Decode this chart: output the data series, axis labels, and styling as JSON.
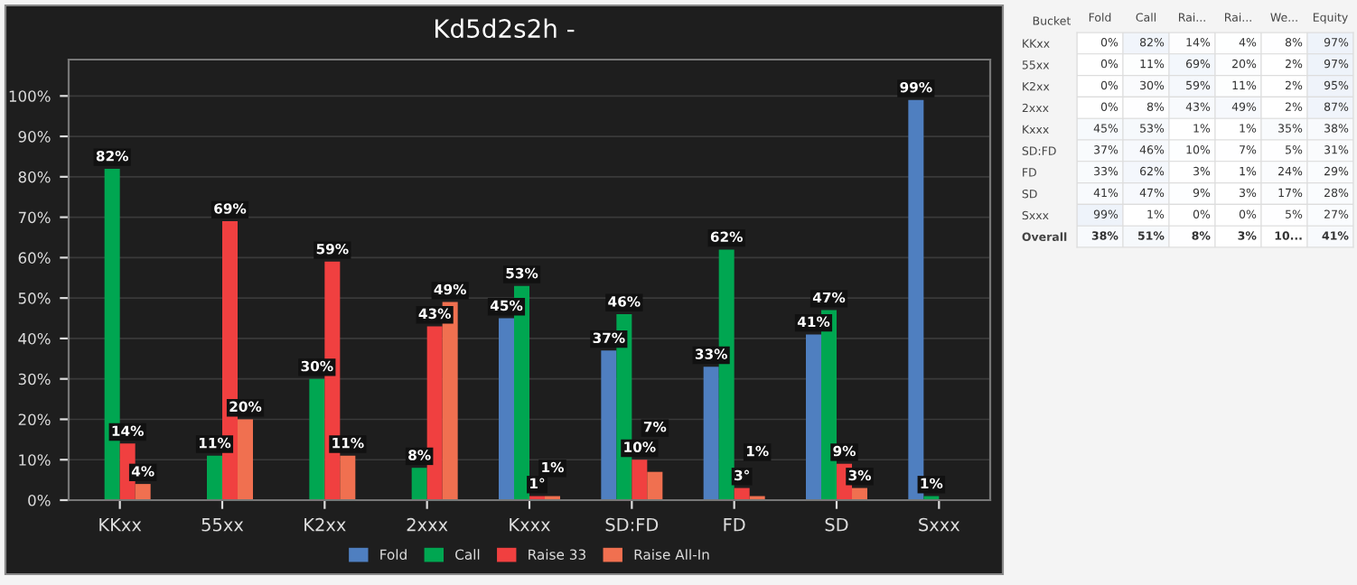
{
  "chart_data": [
    {
      "type": "bar",
      "title": "Kd5d2s2h -",
      "categories": [
        "KKxx",
        "55xx",
        "K2xx",
        "2xxx",
        "Kxxx",
        "SD:FD",
        "FD",
        "SD",
        "Sxxx"
      ],
      "series": [
        {
          "name": "Fold",
          "color": "#4f7fc0",
          "values": [
            0,
            0,
            0,
            0,
            45,
            37,
            33,
            41,
            99
          ],
          "value_labels": [
            null,
            null,
            null,
            null,
            "45%",
            "37%",
            "33%",
            "41%",
            "99%"
          ]
        },
        {
          "name": "Call",
          "color": "#00a651",
          "values": [
            82,
            11,
            30,
            8,
            53,
            46,
            62,
            47,
            1
          ],
          "value_labels": [
            "82%",
            "11%",
            "30%",
            "8%",
            "53%",
            "46%",
            "62%",
            "47%",
            "1%"
          ]
        },
        {
          "name": "Raise 33",
          "color": "#f04040",
          "values": [
            14,
            69,
            59,
            43,
            1,
            10,
            3,
            9,
            0
          ],
          "value_labels": [
            "14%",
            "69%",
            "59%",
            "43%",
            "1°",
            "10%",
            "3°",
            "9%",
            null
          ]
        },
        {
          "name": "Raise All-In",
          "color": "#f07050",
          "values": [
            4,
            20,
            11,
            49,
            1,
            7,
            1,
            3,
            0
          ],
          "value_labels": [
            "4%",
            "20%",
            "11%",
            "49%",
            "1%",
            "7%",
            "1%",
            "3%",
            null
          ]
        }
      ],
      "ylim": [
        0,
        109
      ],
      "yticks": [
        {
          "value": 0,
          "label": "0%"
        },
        {
          "value": 10,
          "label": "10%"
        },
        {
          "value": 20,
          "label": "20%"
        },
        {
          "value": 30,
          "label": "30%"
        },
        {
          "value": 40,
          "label": "40%"
        },
        {
          "value": 50,
          "label": "50%"
        },
        {
          "value": 60,
          "label": "60%"
        },
        {
          "value": 70,
          "label": "70%"
        },
        {
          "value": 80,
          "label": "80%"
        },
        {
          "value": 90,
          "label": "90%"
        },
        {
          "value": 100,
          "label": "100%"
        }
      ],
      "grid": "y",
      "legend": "bottom"
    },
    {
      "type": "heatmap",
      "ylabel": "Bucket",
      "categories": [
        "Fold",
        "Call",
        "Rai...",
        "Rai...",
        "We...",
        "Equity"
      ],
      "y_categories": [
        "KKxx",
        "55xx",
        "K2xx",
        "2xxx",
        "Kxxx",
        "SD:FD",
        "FD",
        "SD",
        "Sxxx",
        "Overall"
      ],
      "cells": [
        [
          0,
          82,
          14,
          4,
          8,
          97
        ],
        [
          0,
          11,
          69,
          20,
          2,
          97
        ],
        [
          0,
          30,
          59,
          11,
          2,
          95
        ],
        [
          0,
          8,
          43,
          49,
          2,
          87
        ],
        [
          45,
          53,
          1,
          1,
          35,
          38
        ],
        [
          37,
          46,
          10,
          7,
          5,
          31
        ],
        [
          33,
          62,
          3,
          1,
          24,
          29
        ],
        [
          41,
          47,
          9,
          3,
          17,
          28
        ],
        [
          99,
          1,
          0,
          0,
          5,
          27
        ],
        [
          38,
          51,
          8,
          3,
          null,
          41
        ]
      ],
      "cell_labels": [
        [
          "0%",
          "82%",
          "14%",
          "4%",
          "8%",
          "97%"
        ],
        [
          "0%",
          "11%",
          "69%",
          "20%",
          "2%",
          "97%"
        ],
        [
          "0%",
          "30%",
          "59%",
          "11%",
          "2%",
          "95%"
        ],
        [
          "0%",
          "8%",
          "43%",
          "49%",
          "2%",
          "87%"
        ],
        [
          "45%",
          "53%",
          "1%",
          "1%",
          "35%",
          "38%"
        ],
        [
          "37%",
          "46%",
          "10%",
          "7%",
          "5%",
          "31%"
        ],
        [
          "33%",
          "62%",
          "3%",
          "1%",
          "24%",
          "29%"
        ],
        [
          "41%",
          "47%",
          "9%",
          "3%",
          "17%",
          "28%"
        ],
        [
          "99%",
          "1%",
          "0%",
          "0%",
          "5%",
          "27%"
        ],
        [
          "38%",
          "51%",
          "8%",
          "3%",
          "10...",
          "41%"
        ]
      ]
    }
  ]
}
